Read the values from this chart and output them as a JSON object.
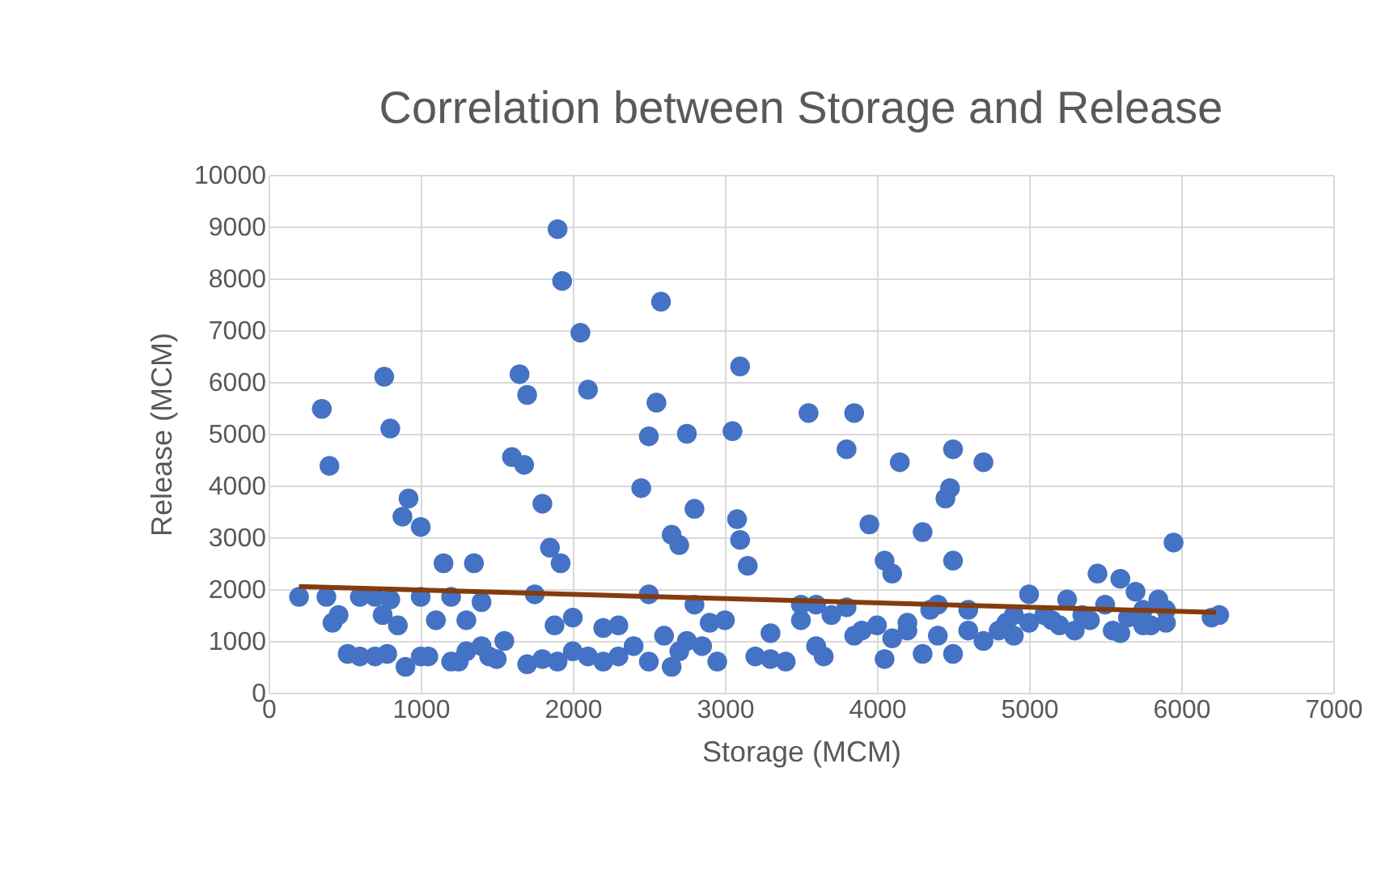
{
  "chart_data": {
    "type": "scatter",
    "title": "Correlation between Storage and Release",
    "xlabel": "Storage (MCM)",
    "ylabel": "Release (MCM)",
    "xlim": [
      0,
      7000
    ],
    "xticks": [
      0,
      1000,
      2000,
      3000,
      4000,
      5000,
      6000,
      7000
    ],
    "ylim": [
      0,
      10000
    ],
    "yticks": [
      0,
      1000,
      2000,
      3000,
      4000,
      5000,
      6000,
      7000,
      8000,
      9000,
      10000
    ],
    "grid": true,
    "series": [
      {
        "color": "#4472c4",
        "marker": "circle",
        "x": [
          200,
          350,
          400,
          380,
          420,
          460,
          520,
          600,
          700,
          760,
          800,
          850,
          880,
          920,
          900,
          750,
          780,
          1000,
          1000,
          1050,
          1100,
          1150,
          1200,
          1250,
          1300,
          1350,
          1400,
          1450,
          1550,
          1600,
          1650,
          1700,
          1680,
          1750,
          1800,
          1850,
          1900,
          1930,
          1920,
          1880,
          1700,
          1800,
          2050,
          2100,
          2000,
          2100,
          2200,
          2300,
          2450,
          2500,
          2550,
          2580,
          2500,
          2600,
          2650,
          2700,
          2650,
          2750,
          2800,
          2800,
          2900,
          2950,
          3050,
          3100,
          3080,
          3100,
          3150,
          3200,
          3300,
          3400,
          3500,
          3550,
          3600,
          3650,
          3800,
          3850,
          3800,
          3950,
          4050,
          4100,
          4000,
          4050,
          4150,
          4200,
          4300,
          4300,
          4400,
          4450,
          4480,
          4500,
          4500,
          4500,
          4600,
          4700,
          4700,
          4850,
          5000,
          5100,
          5200,
          5250,
          5350,
          5450,
          5500,
          5550,
          5600,
          5650,
          5700,
          5750,
          5800,
          5850,
          5900,
          5950,
          6200,
          6250,
          600,
          800,
          1200,
          1400,
          1500,
          1900,
          2000,
          2200,
          2400,
          2500,
          2700,
          2750,
          2850,
          3000,
          3500,
          3600,
          3700,
          3900,
          4100,
          4200,
          4400,
          4600,
          4800,
          4900,
          5000,
          5300,
          5400,
          5600,
          5750,
          5900,
          700,
          1000,
          1300,
          2300,
          3300,
          3850,
          4350,
          4900,
          5150
        ],
        "values": [
          1850,
          5480,
          4380,
          1850,
          1350,
          1500,
          750,
          700,
          1850,
          6100,
          5100,
          1300,
          3400,
          3750,
          500,
          1500,
          750,
          3200,
          1850,
          700,
          1400,
          2500,
          1850,
          600,
          1400,
          2500,
          1750,
          700,
          1000,
          4550,
          6150,
          5750,
          4400,
          1900,
          3650,
          2800,
          8950,
          7950,
          2500,
          1300,
          550,
          650,
          6950,
          5850,
          1450,
          700,
          1250,
          700,
          3950,
          4950,
          5600,
          7550,
          1900,
          1100,
          3050,
          2850,
          500,
          5000,
          3550,
          1700,
          1350,
          600,
          5050,
          6300,
          3350,
          2950,
          2450,
          700,
          1150,
          600,
          1400,
          5400,
          1700,
          700,
          4700,
          5400,
          1650,
          3250,
          2550,
          2300,
          1300,
          650,
          4450,
          1200,
          3100,
          750,
          1700,
          3750,
          3950,
          2550,
          4700,
          750,
          1600,
          4450,
          1000,
          1350,
          1900,
          1500,
          1300,
          1800,
          1500,
          2300,
          1700,
          1200,
          2200,
          1450,
          1950,
          1600,
          1300,
          1800,
          1350,
          2900,
          1450,
          1500,
          1850,
          1800,
          600,
          900,
          650,
          600,
          800,
          600,
          900,
          600,
          800,
          1000,
          900,
          1400,
          1700,
          900,
          1500,
          1200,
          1050,
          1350,
          1100,
          1200,
          1200,
          1500,
          1350,
          1200,
          1400,
          1150,
          1300,
          1600,
          700,
          700,
          800,
          1300,
          650,
          1100,
          1600,
          1100,
          1400
        ]
      },
      {
        "type": "line",
        "color": "#843c0c",
        "x": [
          200,
          6230
        ],
        "values": [
          2050,
          1550
        ]
      }
    ]
  }
}
